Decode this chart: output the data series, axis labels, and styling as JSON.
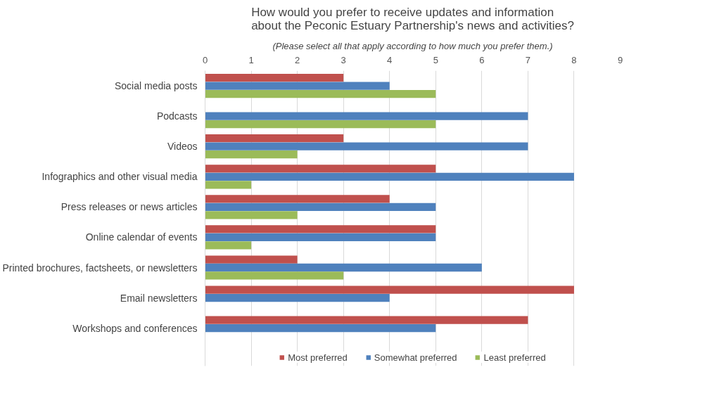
{
  "chart_data": {
    "type": "bar",
    "orientation": "horizontal",
    "title": "How would you prefer to receive updates and information about the Peconic Estuary Partnership's news and activities?",
    "subtitle": "(Please select all that apply according to how much you prefer them.)",
    "categories": [
      "Social media posts",
      "Podcasts",
      "Videos",
      "Infographics and other visual media",
      "Press releases or news articles",
      "Online calendar of events",
      "Printed brochures, factsheets, or newsletters",
      "Email newsletters",
      "Workshops and conferences"
    ],
    "series": [
      {
        "name": "Most preferred",
        "color": "#c0504d",
        "values": [
          3,
          0,
          3,
          5,
          4,
          5,
          2,
          8,
          7
        ]
      },
      {
        "name": "Somewhat preferred",
        "color": "#4f81bd",
        "values": [
          4,
          7,
          7,
          8,
          5,
          5,
          6,
          4,
          5
        ]
      },
      {
        "name": "Least preferred",
        "color": "#9bbb59",
        "values": [
          5,
          5,
          2,
          1,
          2,
          1,
          3,
          0,
          0
        ]
      }
    ],
    "xlim": [
      0,
      9
    ],
    "xticks": [
      0,
      1,
      2,
      3,
      4,
      5,
      6,
      7,
      8,
      9
    ],
    "grid": "x",
    "legend": "bottom"
  }
}
